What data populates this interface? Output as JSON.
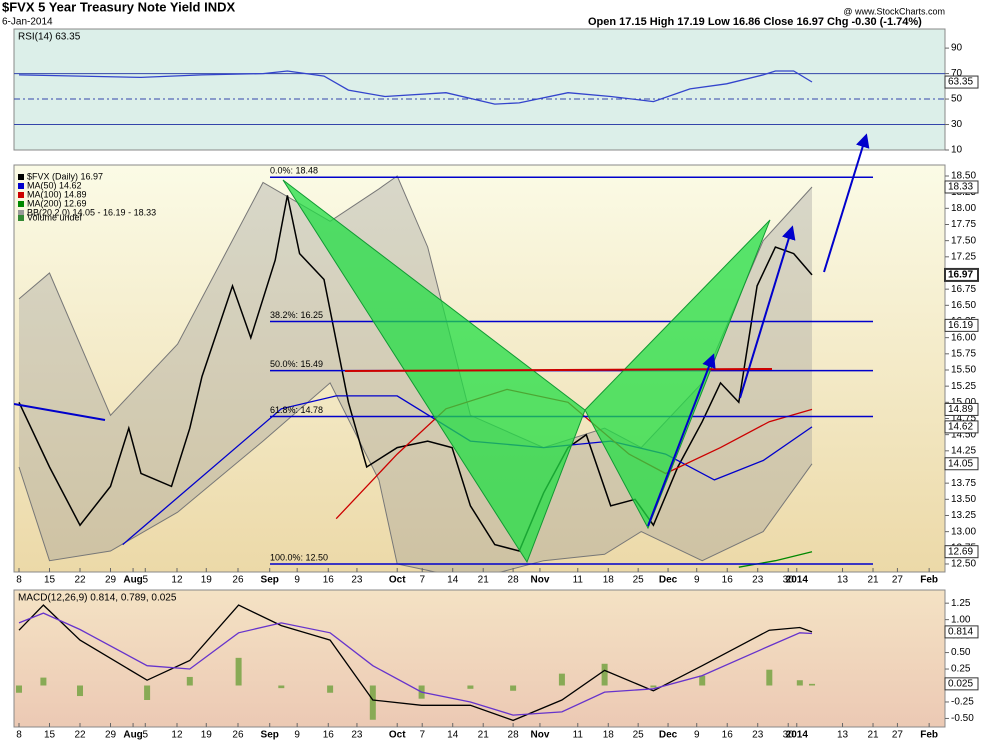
{
  "header": {
    "title": "$FVX 5 Year Treasury Note Yield INDX",
    "date": "6-Jan-2014",
    "source": "@ www.StockCharts.com",
    "quote": "Open 17.15  High 17.19  Low 16.86  Close 16.97  Chg -0.30 (-1.74%)"
  },
  "chart_data": [
    {
      "type": "line",
      "title": "RSI(14) 63.35",
      "ylim": [
        10,
        105
      ],
      "yticks": [
        10,
        30,
        50,
        70,
        90
      ],
      "reference_lines": [
        30,
        50,
        70
      ],
      "xlim": [
        -0.82,
        151.8
      ],
      "markers": [
        63.35
      ],
      "series": [
        {
          "color": "#3344cc",
          "x": [
            0,
            10,
            20,
            30,
            40,
            44,
            50,
            54,
            60,
            70,
            78,
            82,
            90,
            97,
            104,
            110,
            116,
            122,
            124,
            127,
            130
          ],
          "values": [
            69,
            68,
            67,
            69,
            70,
            72,
            68,
            57,
            52,
            55,
            46,
            47,
            55,
            52,
            48,
            58,
            62,
            69,
            72,
            72,
            63.35
          ]
        }
      ]
    },
    {
      "type": "line",
      "ylim": [
        12.376,
        18.67
      ],
      "xlim": [
        -0.82,
        151.8
      ],
      "yticks": [
        {
          "value": 12.5,
          "label": "12.50"
        },
        12.75,
        {
          "value": 13,
          "label": "13.00"
        },
        13.25,
        {
          "value": 13.5,
          "label": "13.50"
        },
        13.75,
        {
          "value": 14,
          "label": "14.00"
        },
        14.25,
        {
          "value": 14.5,
          "label": "14.50"
        },
        14.75,
        {
          "value": 15,
          "label": "15.00"
        },
        15.25,
        {
          "value": 15.5,
          "label": "15.50"
        },
        15.75,
        {
          "value": 16,
          "label": "16.00"
        },
        16.25,
        {
          "value": 16.5,
          "label": "16.50"
        },
        16.75,
        {
          "value": 17,
          "label": "17.00"
        },
        17.25,
        {
          "value": 17.5,
          "label": "17.50"
        },
        17.75,
        {
          "value": 18,
          "label": "18.00"
        },
        18.25,
        {
          "value": 18.5,
          "label": "18.50"
        }
      ],
      "xticks": [
        {
          "value": 0,
          "label": "8"
        },
        {
          "value": 5,
          "label": "15"
        },
        {
          "value": 10,
          "label": "22"
        },
        {
          "value": 15,
          "label": "29"
        },
        {
          "value": 18.7,
          "label": "Aug"
        },
        {
          "value": 20.7,
          "label": "5"
        },
        {
          "value": 25.9,
          "label": "12"
        },
        {
          "value": 30.7,
          "label": "19"
        },
        {
          "value": 35.9,
          "label": "26"
        },
        {
          "value": 41.1,
          "label": "Sep"
        },
        {
          "value": 45.6,
          "label": "9"
        },
        {
          "value": 50.7,
          "label": "16"
        },
        {
          "value": 55.4,
          "label": "23"
        },
        {
          "value": 62,
          "label": "Oct"
        },
        {
          "value": 66.1,
          "label": "7"
        },
        {
          "value": 71.1,
          "label": "14"
        },
        {
          "value": 76.1,
          "label": "21"
        },
        {
          "value": 81,
          "label": "28"
        },
        {
          "value": 85.4,
          "label": "Nov"
        },
        {
          "value": 91.6,
          "label": "11"
        },
        {
          "value": 96.6,
          "label": "18"
        },
        {
          "value": 101.5,
          "label": "25"
        },
        {
          "value": 106.4,
          "label": "Dec"
        },
        {
          "value": 111.1,
          "label": "9"
        },
        {
          "value": 116.1,
          "label": "16"
        },
        {
          "value": 121.1,
          "label": "23"
        },
        {
          "value": 126.1,
          "label": "30"
        },
        {
          "value": 127.5,
          "label": "2014"
        },
        {
          "value": 135,
          "label": "13"
        },
        {
          "value": 140,
          "label": "21"
        },
        {
          "value": 144,
          "label": "27"
        },
        {
          "value": 149.2,
          "label": "Feb"
        }
      ],
      "markers": [
        18.33,
        16.97,
        16.19,
        14.89,
        14.62,
        14.05,
        12.69
      ],
      "fib_levels": [
        {
          "value": 18.48,
          "label": "0.0%: 18.48"
        },
        {
          "value": 16.25,
          "label": "38.2%: 16.25"
        },
        {
          "value": 15.49,
          "label": "50.0%: 15.49"
        },
        {
          "value": 14.78,
          "label": "61.8%: 14.78"
        },
        {
          "value": 12.5,
          "label": "100.0%: 12.50"
        }
      ],
      "volume_label": "Volume undef",
      "series": [
        {
          "name": "BB(20,2.0) 14.05 - 16.19 - 18.33",
          "kind": "band",
          "color": "#999999",
          "x": [
            0,
            5,
            15,
            26,
            40,
            51,
            59,
            62,
            67,
            74,
            86,
            96,
            102,
            112,
            122,
            130
          ],
          "upper": [
            16.6,
            17.0,
            14.8,
            15.9,
            18.4,
            17.8,
            18.3,
            18.5,
            17.4,
            14.8,
            14.3,
            14.6,
            14.3,
            15.3,
            17.5,
            18.33
          ],
          "lower": [
            14.0,
            12.55,
            12.7,
            13.3,
            14.4,
            15.3,
            13.8,
            12.5,
            12.4,
            12.25,
            12.55,
            12.65,
            13.0,
            12.55,
            13.0,
            14.05
          ]
        },
        {
          "name": "$FVX (Daily) 16.97",
          "color": "#000000",
          "x": [
            0,
            5,
            10,
            15,
            18,
            20,
            25,
            28,
            30,
            35,
            38,
            42,
            44,
            46,
            50,
            54,
            57,
            62,
            67,
            71,
            74,
            78,
            82,
            86,
            90,
            93,
            97,
            101,
            104,
            108,
            112,
            115,
            118,
            121,
            124,
            127,
            130
          ],
          "values": [
            15.0,
            14.0,
            13.1,
            13.7,
            14.6,
            13.9,
            13.7,
            14.6,
            15.4,
            16.8,
            16.0,
            17.2,
            18.2,
            17.3,
            16.9,
            15.0,
            14.0,
            14.3,
            14.4,
            14.3,
            13.4,
            12.8,
            12.7,
            13.6,
            14.3,
            14.5,
            13.4,
            13.5,
            13.1,
            14.0,
            14.7,
            15.3,
            15.0,
            16.8,
            17.4,
            17.3,
            16.97
          ]
        },
        {
          "name": "MA(50) 14.62",
          "color": "#0000cc",
          "x": [
            17,
            43,
            52,
            62,
            74,
            86,
            97,
            106,
            114,
            122,
            130
          ],
          "values": [
            12.8,
            14.9,
            15.1,
            15.1,
            14.4,
            14.3,
            14.4,
            14.2,
            13.8,
            14.1,
            14.62
          ]
        },
        {
          "name": "MA(100) 14.89",
          "color": "#cc0000",
          "x": [
            52,
            62,
            70,
            80,
            90,
            100,
            106,
            115,
            123,
            130
          ],
          "values": [
            13.2,
            14.2,
            14.9,
            15.2,
            15.0,
            14.2,
            13.9,
            14.3,
            14.7,
            14.89
          ]
        },
        {
          "name": "MA(200) 12.69",
          "color": "#008800",
          "x": [
            118,
            124,
            130
          ],
          "values": [
            12.45,
            12.55,
            12.69
          ]
        }
      ]
    },
    {
      "type": "line",
      "title": "MACD(12,26,9) 0.814, 0.789, 0.025",
      "ylim": [
        -0.63,
        1.45
      ],
      "xlim": [
        -0.82,
        151.8
      ],
      "yticks": [
        1.25,
        {
          "value": 1,
          "label": "1.00"
        },
        0.75,
        {
          "value": 0.5,
          "label": "0.50"
        },
        0.25,
        {
          "value": 0,
          "label": "0.00"
        },
        -0.25,
        {
          "value": -0.5,
          "label": "-0.50"
        }
      ],
      "xticks": [
        {
          "value": 0,
          "label": "8"
        },
        {
          "value": 5,
          "label": "15"
        },
        {
          "value": 10,
          "label": "22"
        },
        {
          "value": 15,
          "label": "29"
        },
        {
          "value": 18.7,
          "label": "Aug"
        },
        {
          "value": 20.7,
          "label": "5"
        },
        {
          "value": 25.9,
          "label": "12"
        },
        {
          "value": 30.7,
          "label": "19"
        },
        {
          "value": 35.9,
          "label": "26"
        },
        {
          "value": 41.1,
          "label": "Sep"
        },
        {
          "value": 45.6,
          "label": "9"
        },
        {
          "value": 50.7,
          "label": "16"
        },
        {
          "value": 55.4,
          "label": "23"
        },
        {
          "value": 62,
          "label": "Oct"
        },
        {
          "value": 66.1,
          "label": "7"
        },
        {
          "value": 71.1,
          "label": "14"
        },
        {
          "value": 76.1,
          "label": "21"
        },
        {
          "value": 81,
          "label": "28"
        },
        {
          "value": 85.4,
          "label": "Nov"
        },
        {
          "value": 91.6,
          "label": "11"
        },
        {
          "value": 96.6,
          "label": "18"
        },
        {
          "value": 101.5,
          "label": "25"
        },
        {
          "value": 106.4,
          "label": "Dec"
        },
        {
          "value": 111.1,
          "label": "9"
        },
        {
          "value": 116.1,
          "label": "16"
        },
        {
          "value": 121.1,
          "label": "23"
        },
        {
          "value": 126.1,
          "label": "30"
        },
        {
          "value": 127.5,
          "label": "2014"
        },
        {
          "value": 135,
          "label": "13"
        },
        {
          "value": 140,
          "label": "21"
        },
        {
          "value": 144,
          "label": "27"
        },
        {
          "value": 149.2,
          "label": "Feb"
        }
      ],
      "markers": [
        0.814,
        0.025
      ],
      "series": [
        {
          "kind": "bar",
          "color": "#88aa55",
          "x": [
            0,
            4,
            10,
            21,
            28,
            36,
            43,
            51,
            58,
            66,
            74,
            81,
            89,
            96,
            104,
            112,
            123,
            128,
            130
          ],
          "values": [
            -0.11,
            0.12,
            -0.16,
            -0.22,
            0.13,
            0.42,
            -0.04,
            -0.11,
            -0.52,
            -0.2,
            -0.05,
            -0.08,
            0.18,
            0.33,
            -0.03,
            0.15,
            0.24,
            0.08,
            0.025
          ]
        },
        {
          "color": "#000000",
          "x": [
            0,
            4,
            10,
            21,
            28,
            36,
            43,
            51,
            58,
            66,
            74,
            81,
            89,
            96,
            104,
            112,
            123,
            128,
            130
          ],
          "values": [
            0.84,
            1.22,
            0.69,
            0.08,
            0.38,
            1.22,
            0.91,
            0.69,
            -0.22,
            -0.3,
            -0.3,
            -0.53,
            -0.22,
            0.23,
            -0.08,
            0.3,
            0.84,
            0.88,
            0.814
          ]
        },
        {
          "color": "#6633cc",
          "x": [
            0,
            4,
            10,
            21,
            28,
            36,
            43,
            51,
            58,
            66,
            74,
            81,
            89,
            96,
            104,
            112,
            123,
            128,
            130
          ],
          "values": [
            0.95,
            1.1,
            0.85,
            0.3,
            0.25,
            0.8,
            0.95,
            0.8,
            0.3,
            -0.1,
            -0.25,
            -0.45,
            -0.4,
            -0.1,
            -0.05,
            0.15,
            0.6,
            0.8,
            0.789
          ]
        }
      ]
    }
  ]
}
